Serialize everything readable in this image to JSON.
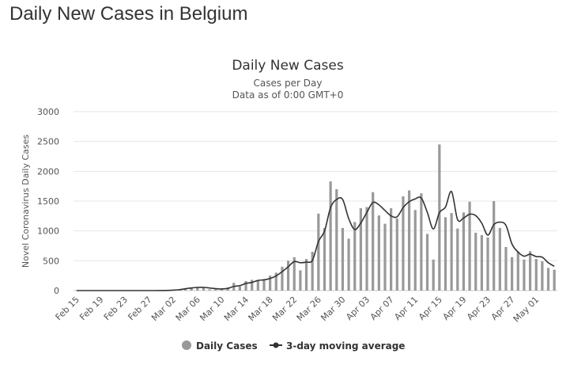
{
  "page": {
    "title": "Daily New Cases in Belgium"
  },
  "colors": {
    "bar": "#999999",
    "line": "#333333",
    "grid": "#e6e6e6"
  },
  "chart_data": {
    "type": "bar",
    "title": "Daily New Cases",
    "subtitle": "Cases per Day",
    "subtitle2": "Data as of 0:00 GMT+0",
    "ylabel": "Novel Coronavirus Daily Cases",
    "xlabel": "",
    "ylim": [
      0,
      3000
    ],
    "yticks": [
      0,
      500,
      1000,
      1500,
      2000,
      2500,
      3000
    ],
    "grid": true,
    "legend_position": "bottom-center",
    "x_tick_labels": [
      "Feb 15",
      "Feb 19",
      "Feb 23",
      "Feb 27",
      "Mar 02",
      "Mar 06",
      "Mar 10",
      "Mar 14",
      "Mar 18",
      "Mar 22",
      "Mar 26",
      "Mar 30",
      "Apr 03",
      "Apr 07",
      "Apr 11",
      "Apr 15",
      "Apr 19",
      "Apr 23",
      "Apr 27",
      "May 01"
    ],
    "x_tick_every": 4,
    "x_start": "Feb 15",
    "x_end": "May 05",
    "series": [
      {
        "name": "Daily Cases",
        "kind": "bar",
        "values": [
          0,
          0,
          0,
          0,
          0,
          0,
          0,
          0,
          0,
          0,
          0,
          0,
          0,
          0,
          0,
          2,
          8,
          13,
          23,
          50,
          60,
          50,
          20,
          30,
          30,
          50,
          130,
          70,
          160,
          180,
          170,
          190,
          250,
          300,
          400,
          500,
          560,
          340,
          530,
          650,
          1290,
          1050,
          1830,
          1700,
          1050,
          870,
          1150,
          1380,
          1400,
          1650,
          1260,
          1120,
          1380,
          1210,
          1580,
          1680,
          1350,
          1630,
          950,
          520,
          2450,
          1230,
          1300,
          1040,
          1310,
          1490,
          970,
          930,
          890,
          1500,
          1050,
          730,
          560,
          650,
          520,
          660,
          530,
          490,
          380,
          350
        ],
        "ignored": null
      },
      {
        "name": "3-day moving average",
        "kind": "line",
        "values": [
          0,
          0,
          0,
          0,
          0,
          0,
          0,
          0,
          0,
          0,
          0,
          0,
          0,
          0,
          1,
          3,
          8,
          15,
          31,
          44,
          53,
          53,
          43,
          33,
          27,
          37,
          70,
          83,
          120,
          137,
          170,
          180,
          203,
          247,
          317,
          400,
          487,
          467,
          477,
          507,
          823,
          997,
          1390,
          1527,
          1527,
          1207,
          1023,
          1133,
          1310,
          1477,
          1437,
          1343,
          1253,
          1237,
          1390,
          1490,
          1537,
          1553,
          1310,
          1033,
          1307,
          1400,
          1660,
          1190,
          1217,
          1280,
          1257,
          1130,
          930,
          1107,
          1147,
          1093,
          780,
          647,
          577,
          610,
          570,
          560,
          467,
          407
        ],
        "ignored": null
      }
    ]
  },
  "legend": {
    "items": [
      "Daily Cases",
      "3-day moving average"
    ]
  }
}
